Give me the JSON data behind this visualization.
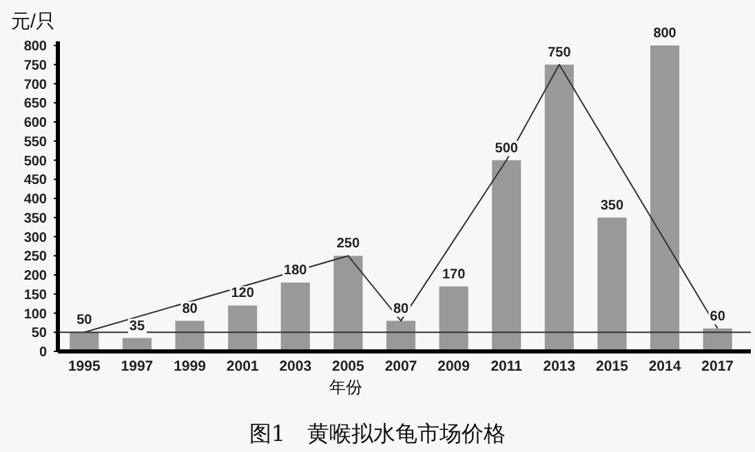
{
  "chart_data": {
    "type": "bar",
    "title": "图1　黄喉拟水龟市场价格",
    "xlabel": "年份",
    "ylabel": "元/只",
    "categories": [
      "1995",
      "1997",
      "1999",
      "2001",
      "2003",
      "2005",
      "2007",
      "2009",
      "2011",
      "2013",
      "2015",
      "2014",
      "2017"
    ],
    "series": [
      {
        "color": "#999999",
        "values": [
          50,
          35,
          80,
          120,
          180,
          250,
          80,
          170,
          500,
          750,
          350,
          800,
          60
        ],
        "value_labels": [
          "50",
          "35",
          "80",
          "120",
          "180",
          "250",
          "80",
          "170",
          "500",
          "750",
          "350",
          "800",
          "60"
        ]
      },
      {
        "type": "line",
        "color": "#333333",
        "values": [
          50,
          null,
          null,
          null,
          null,
          250,
          80,
          null,
          500,
          750,
          null,
          null,
          60
        ]
      }
    ],
    "ylim": [
      0,
      800
    ],
    "yticks": [
      0,
      50,
      100,
      150,
      200,
      250,
      300,
      350,
      400,
      450,
      500,
      550,
      600,
      650,
      700,
      750,
      800
    ],
    "ref_lines": [
      {
        "axis": "y",
        "value": 50,
        "color": "#333333"
      }
    ],
    "grid": false
  }
}
